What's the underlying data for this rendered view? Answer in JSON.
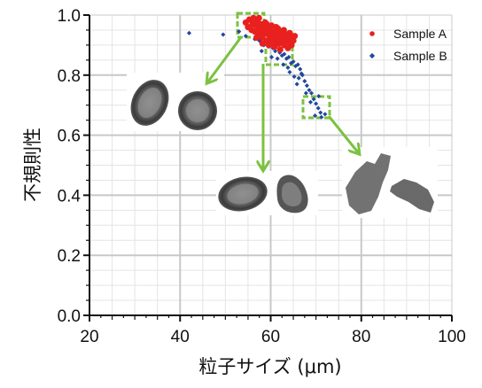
{
  "chart_data": {
    "type": "scatter",
    "xlabel": "粒子サイズ (μm)",
    "ylabel": "不規則性",
    "xlim": [
      20,
      100
    ],
    "ylim": [
      0.0,
      1.0
    ],
    "x_ticks": [
      "20",
      "40",
      "60",
      "80",
      "100"
    ],
    "y_ticks": [
      "0.0",
      "0.2",
      "0.4",
      "0.6",
      "0.8",
      "1.0"
    ],
    "grid": true,
    "legend_position": "top-right",
    "series": [
      {
        "name": "Sample A",
        "color": "#e8201e",
        "marker": "circle",
        "points": [
          [
            54.5,
            0.975
          ],
          [
            55.0,
            0.96
          ],
          [
            55.3,
            0.985
          ],
          [
            55.8,
            0.95
          ],
          [
            56.0,
            0.97
          ],
          [
            56.2,
            0.99
          ],
          [
            56.5,
            0.945
          ],
          [
            56.8,
            0.965
          ],
          [
            57.0,
            0.98
          ],
          [
            57.2,
            0.935
          ],
          [
            57.5,
            0.955
          ],
          [
            57.8,
            0.97
          ],
          [
            58.0,
            0.945
          ],
          [
            58.2,
            0.925
          ],
          [
            58.5,
            0.96
          ],
          [
            58.7,
            0.94
          ],
          [
            59.0,
            0.955
          ],
          [
            59.2,
            0.915
          ],
          [
            59.5,
            0.935
          ],
          [
            59.8,
            0.95
          ],
          [
            60.0,
            0.925
          ],
          [
            60.3,
            0.945
          ],
          [
            60.5,
            0.91
          ],
          [
            60.8,
            0.93
          ],
          [
            61.0,
            0.945
          ],
          [
            61.3,
            0.92
          ],
          [
            61.5,
            0.935
          ],
          [
            61.8,
            0.905
          ],
          [
            62.0,
            0.925
          ],
          [
            62.3,
            0.94
          ],
          [
            62.5,
            0.915
          ],
          [
            62.8,
            0.93
          ],
          [
            63.0,
            0.9
          ],
          [
            63.3,
            0.92
          ],
          [
            63.6,
            0.935
          ],
          [
            64.0,
            0.91
          ],
          [
            64.3,
            0.925
          ],
          [
            64.6,
            0.9
          ],
          [
            65.0,
            0.915
          ],
          [
            57.4,
            0.99
          ],
          [
            58.8,
            0.975
          ],
          [
            60.2,
            0.965
          ],
          [
            61.6,
            0.955
          ],
          [
            59.6,
            0.9
          ],
          [
            58.2,
            0.905
          ],
          [
            56.9,
            0.925
          ],
          [
            62.9,
            0.95
          ],
          [
            64.2,
            0.94
          ],
          [
            65.3,
            0.93
          ],
          [
            60.9,
            0.895
          ],
          [
            62.1,
            0.885
          ],
          [
            63.8,
            0.89
          ],
          [
            59.1,
            0.97
          ],
          [
            57.7,
            0.945
          ],
          [
            61.2,
            0.96
          ]
        ]
      },
      {
        "name": "Sample B",
        "color": "#23479b",
        "marker": "diamond",
        "points": [
          [
            42.0,
            0.94
          ],
          [
            49.5,
            0.935
          ],
          [
            53.0,
            0.945
          ],
          [
            54.5,
            0.93
          ],
          [
            56.5,
            0.92
          ],
          [
            57.5,
            0.915
          ],
          [
            58.5,
            0.9
          ],
          [
            59.5,
            0.895
          ],
          [
            60.5,
            0.89
          ],
          [
            61.0,
            0.88
          ],
          [
            62.0,
            0.875
          ],
          [
            62.5,
            0.865
          ],
          [
            63.0,
            0.87
          ],
          [
            63.5,
            0.855
          ],
          [
            64.0,
            0.86
          ],
          [
            64.5,
            0.84
          ],
          [
            65.0,
            0.845
          ],
          [
            65.5,
            0.83
          ],
          [
            66.0,
            0.835
          ],
          [
            66.5,
            0.82
          ],
          [
            61.5,
            0.855
          ],
          [
            62.8,
            0.835
          ],
          [
            64.2,
            0.81
          ],
          [
            65.2,
            0.795
          ],
          [
            66.2,
            0.79
          ],
          [
            67.0,
            0.8
          ],
          [
            67.5,
            0.78
          ],
          [
            68.0,
            0.765
          ],
          [
            68.5,
            0.75
          ],
          [
            69.0,
            0.74
          ],
          [
            69.5,
            0.72
          ],
          [
            70.0,
            0.705
          ],
          [
            70.5,
            0.69
          ],
          [
            71.0,
            0.675
          ],
          [
            69.8,
            0.665
          ],
          [
            70.6,
            0.73
          ],
          [
            71.2,
            0.66
          ],
          [
            72.0,
            0.67
          ],
          [
            65.8,
            0.77
          ],
          [
            63.8,
            0.825
          ],
          [
            60.2,
            0.86
          ],
          [
            58.0,
            0.88
          ],
          [
            66.8,
            0.805
          ],
          [
            67.8,
            0.74
          ],
          [
            68.8,
            0.71
          ]
        ]
      }
    ]
  }
}
